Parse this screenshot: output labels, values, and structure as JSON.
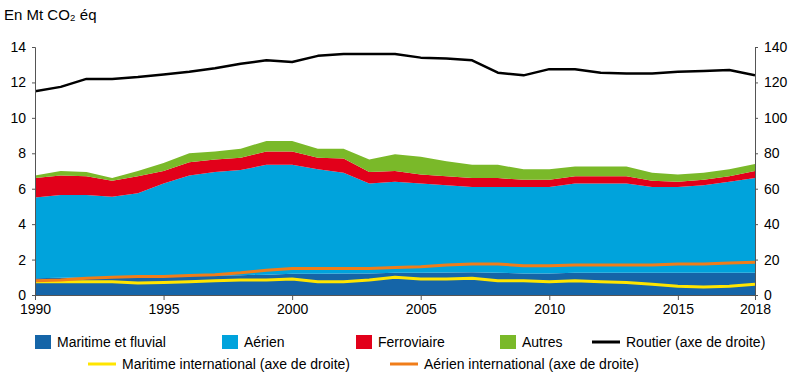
{
  "chart_data": {
    "type": "area",
    "ylabel": "En Mt CO₂ éq",
    "stacked": true,
    "legend": "bottom",
    "x": [
      1990,
      1991,
      1992,
      1993,
      1994,
      1995,
      1996,
      1997,
      1998,
      1999,
      2000,
      2001,
      2002,
      2003,
      2004,
      2005,
      2006,
      2007,
      2008,
      2009,
      2010,
      2011,
      2012,
      2013,
      2014,
      2015,
      2016,
      2017,
      2018
    ],
    "xlim": [
      1990,
      2018
    ],
    "xticks": [
      1990,
      1995,
      2000,
      2005,
      2010,
      2015,
      2018
    ],
    "ylim": [
      0,
      14
    ],
    "yticks": [
      0,
      2,
      4,
      6,
      8,
      10,
      12,
      14
    ],
    "y2lim": [
      0,
      140
    ],
    "y2ticks": [
      0,
      20,
      40,
      60,
      80,
      100,
      120,
      140
    ],
    "series": [
      {
        "name": "Maritime et fluvial",
        "type": "area",
        "color": "#1565a8",
        "values": [
          0.95,
          0.97,
          1.0,
          1.0,
          1.02,
          1.05,
          1.07,
          1.1,
          1.12,
          1.15,
          1.2,
          1.2,
          1.22,
          1.22,
          1.25,
          1.25,
          1.27,
          1.28,
          1.25,
          1.22,
          1.22,
          1.25,
          1.25,
          1.25,
          1.25,
          1.25,
          1.25,
          1.25,
          1.25
        ]
      },
      {
        "name": "Aérien",
        "type": "area",
        "color": "#00a3dc",
        "values": [
          4.55,
          4.68,
          4.65,
          4.55,
          4.73,
          5.25,
          5.68,
          5.85,
          5.93,
          6.2,
          6.15,
          5.9,
          5.68,
          5.08,
          5.15,
          5.05,
          4.93,
          4.82,
          4.85,
          4.88,
          4.88,
          5.05,
          5.05,
          5.05,
          4.85,
          4.85,
          4.95,
          5.15,
          5.35
        ]
      },
      {
        "name": "Ferroviaire",
        "type": "area",
        "color": "#e2001a",
        "values": [
          1.1,
          1.1,
          1.05,
          0.9,
          0.95,
          0.7,
          0.75,
          0.7,
          0.7,
          0.75,
          0.75,
          0.65,
          0.8,
          0.65,
          0.6,
          0.5,
          0.5,
          0.5,
          0.5,
          0.4,
          0.4,
          0.4,
          0.4,
          0.4,
          0.35,
          0.3,
          0.3,
          0.3,
          0.4
        ]
      },
      {
        "name": "Autres",
        "type": "area",
        "color": "#7ab929",
        "values": [
          0.15,
          0.25,
          0.25,
          0.15,
          0.3,
          0.45,
          0.5,
          0.45,
          0.5,
          0.6,
          0.6,
          0.5,
          0.55,
          0.7,
          0.95,
          1.0,
          0.85,
          0.75,
          0.75,
          0.6,
          0.6,
          0.55,
          0.55,
          0.55,
          0.45,
          0.4,
          0.4,
          0.4,
          0.4
        ]
      },
      {
        "name": "Routier (axe de droite)",
        "type": "line",
        "axis": "y2",
        "color": "#000000",
        "values": [
          115,
          117.5,
          122,
          122,
          123,
          124.5,
          126,
          128,
          130.5,
          132.5,
          131.5,
          135,
          136,
          136,
          136,
          134,
          133.5,
          132.5,
          125.5,
          124,
          127.5,
          127.5,
          125.5,
          125,
          125,
          126,
          126.5,
          127,
          124
        ]
      },
      {
        "name": "Maritime international (axe de droite)",
        "type": "line",
        "axis": "y2",
        "color": "#ffe500",
        "values": [
          7.5,
          7.5,
          7.5,
          7.5,
          6.8,
          7,
          7.5,
          8,
          8.5,
          8.5,
          9,
          7.5,
          7.5,
          8.5,
          10,
          9,
          9,
          9.5,
          8,
          8,
          7.5,
          8,
          7.5,
          7,
          6,
          5,
          4.5,
          5,
          6
        ]
      },
      {
        "name": "Aérien international (axe de droite)",
        "type": "line",
        "axis": "y2",
        "color": "#f07d19",
        "values": [
          8,
          8.5,
          9.5,
          10,
          10.5,
          10.5,
          11,
          11.5,
          12.5,
          14,
          15,
          15,
          15,
          15,
          15.5,
          16,
          17,
          17.5,
          17.5,
          16.5,
          16.5,
          17,
          17,
          17,
          17,
          17.5,
          17.5,
          18,
          18.5
        ]
      }
    ]
  }
}
